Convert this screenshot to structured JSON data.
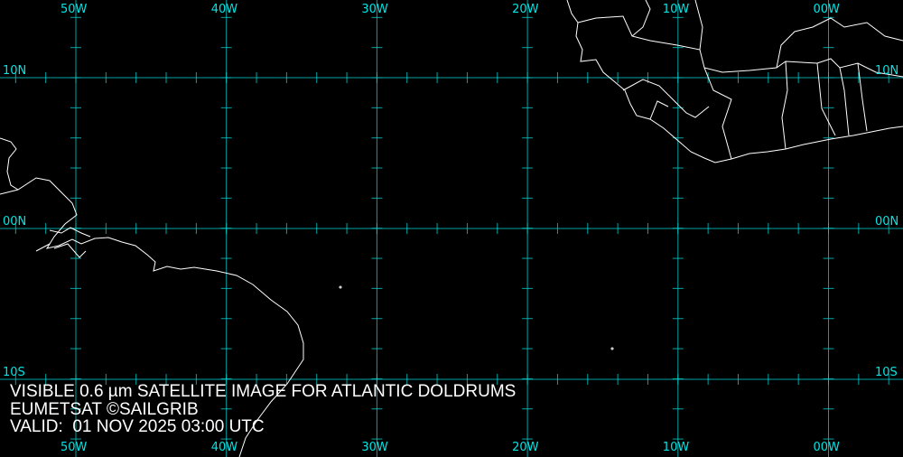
{
  "caption": {
    "line1": "VISIBLE 0.6 µm SATELLITE IMAGE FOR ATLANTIC DOLDRUMS",
    "line2": "EUMETSAT ©SAILGRIB",
    "line3": "VALID:  01 NOV 2025 03:00 UTC"
  },
  "grid": {
    "color": "#00cccc",
    "longitudes": [
      "50W",
      "40W",
      "30W",
      "20W",
      "10W",
      "00W"
    ],
    "latitudes": [
      "10N",
      "00N",
      "10S"
    ],
    "tick_interval_degrees": 2
  },
  "coastline_color": "#ffffff",
  "background_color": "#000000"
}
